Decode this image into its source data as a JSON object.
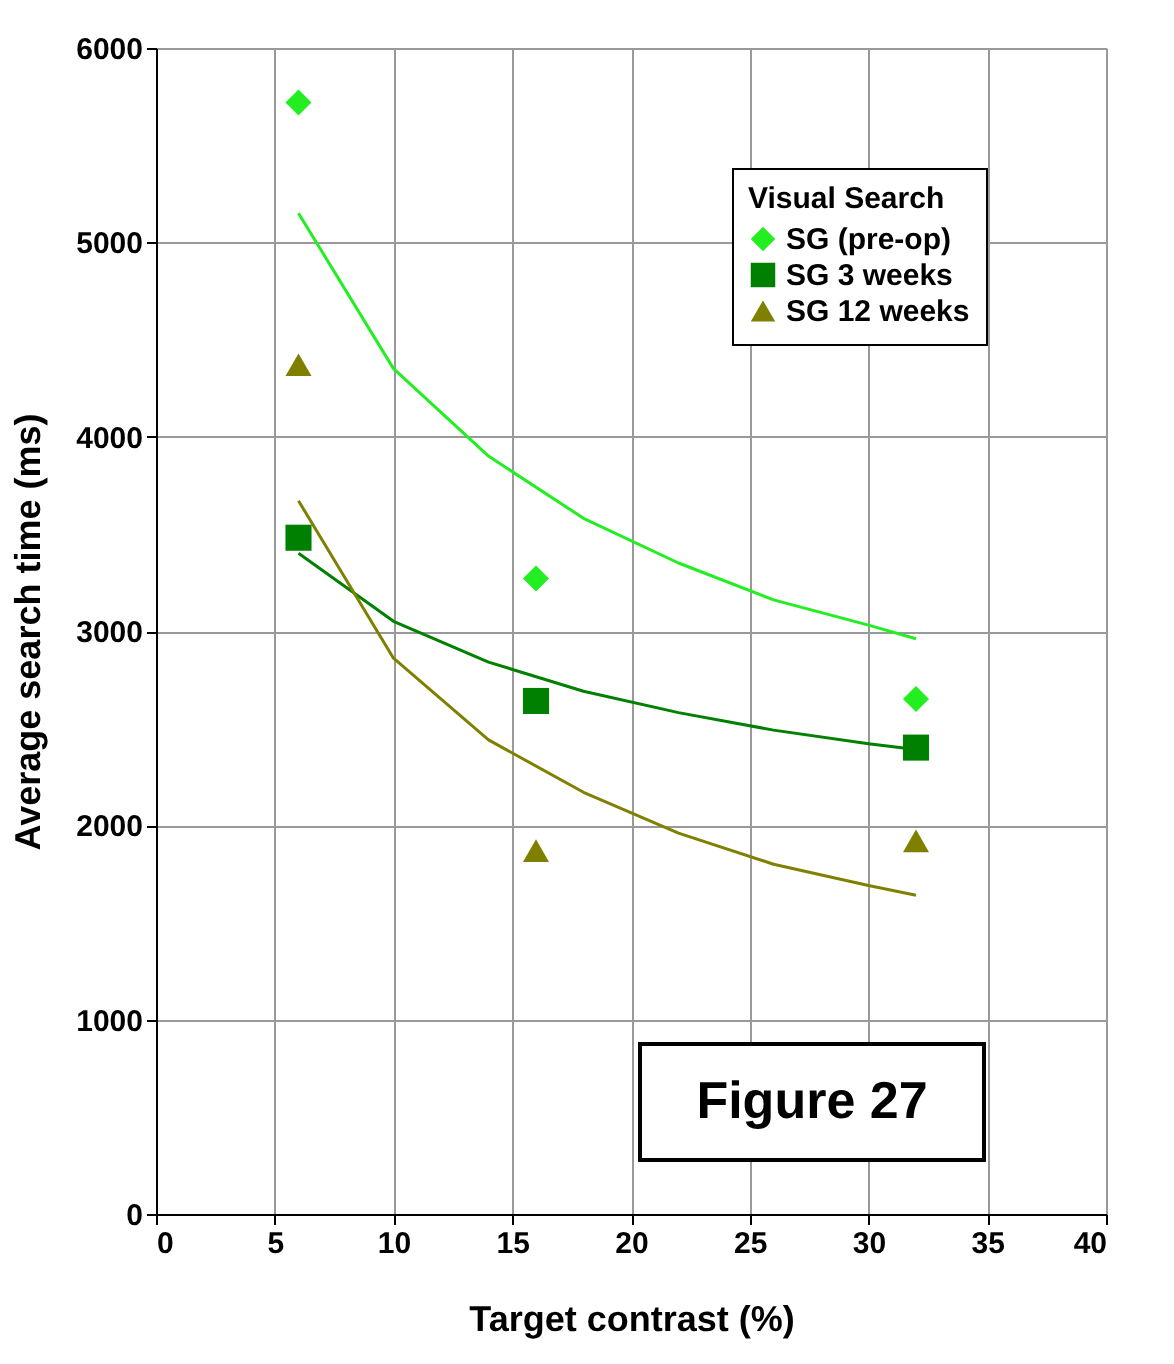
{
  "chart_data": {
    "type": "scatter",
    "xlabel": "Target contrast (%)",
    "ylabel": "Average search time (ms)",
    "legend_title": "Visual Search",
    "legend": "top right",
    "grid": true,
    "xlim": [
      0,
      40
    ],
    "xticks": [
      0,
      5,
      10,
      15,
      20,
      25,
      30,
      35,
      40
    ],
    "ylim": [
      0,
      6000
    ],
    "yticks": [
      0,
      1000,
      2000,
      3000,
      4000,
      5000,
      6000
    ],
    "annotations": [
      "Figure 27"
    ],
    "series": [
      {
        "name": "SG (pre-op)",
        "marker": "diamond",
        "color": "#22ee22",
        "x": [
          6,
          16,
          32
        ],
        "values": [
          5720,
          3270,
          2650
        ]
      },
      {
        "name": "SG 3 weeks",
        "marker": "square",
        "color": "#008000",
        "x": [
          6,
          16,
          32
        ],
        "values": [
          3480,
          2640,
          2400
        ]
      },
      {
        "name": "SG 12 weeks",
        "marker": "triangle",
        "color": "#808000",
        "x": [
          6,
          16,
          32
        ],
        "values": [
          4370,
          1870,
          1920
        ]
      },
      {
        "type": "line",
        "color": "#22ee22",
        "x": [
          6,
          10,
          14,
          18,
          22,
          26,
          30,
          32
        ],
        "values": [
          5150,
          4350,
          3900,
          3580,
          3350,
          3160,
          3030,
          2960
        ]
      },
      {
        "type": "line",
        "color": "#008000",
        "x": [
          6,
          10,
          14,
          18,
          22,
          26,
          30,
          32
        ],
        "values": [
          3400,
          3050,
          2840,
          2690,
          2580,
          2490,
          2420,
          2390
        ]
      },
      {
        "type": "line",
        "color": "#808000",
        "x": [
          6,
          10,
          14,
          18,
          22,
          26,
          30,
          32
        ],
        "values": [
          3670,
          2860,
          2440,
          2170,
          1960,
          1800,
          1690,
          1640
        ]
      }
    ]
  }
}
